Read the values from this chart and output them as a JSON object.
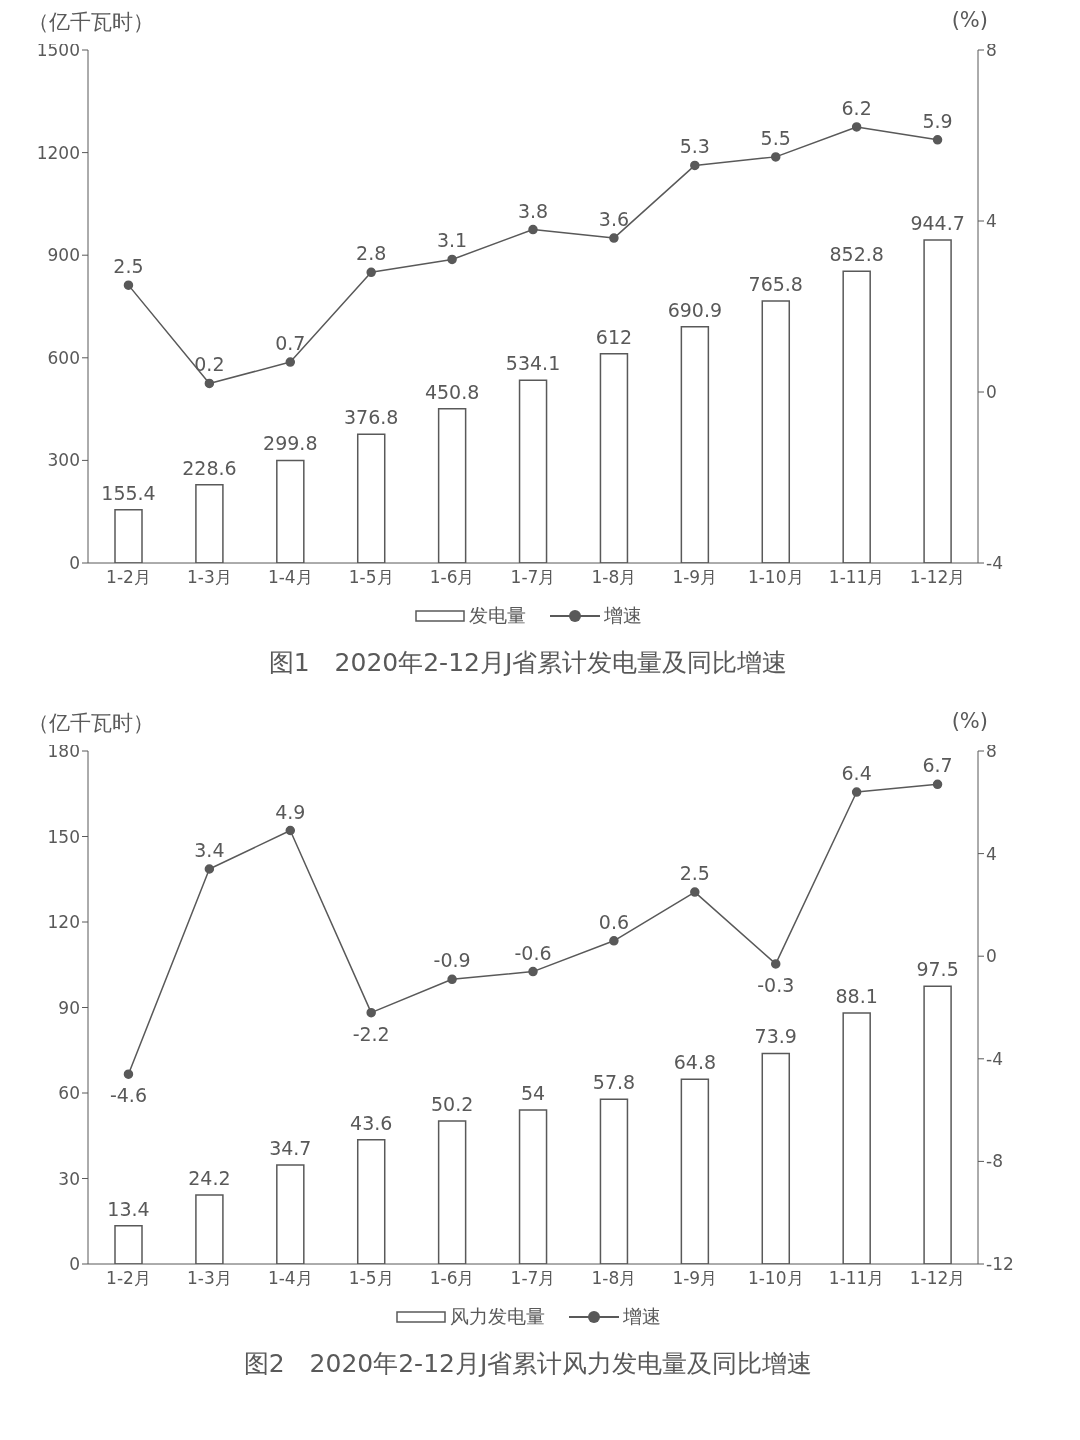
{
  "chart_data": [
    {
      "type": "bar",
      "title": "图1　2020年2-12月J省累计发电量及同比增速",
      "ylabel": "（亿千瓦时）",
      "y2label": "(%)",
      "categories": [
        "1-2月",
        "1-3月",
        "1-4月",
        "1-5月",
        "1-6月",
        "1-7月",
        "1-8月",
        "1-9月",
        "1-10月",
        "1-11月",
        "1-12月"
      ],
      "series": [
        {
          "name": "发电量",
          "color": "#ffffff",
          "values": [
            155.4,
            228.6,
            299.8,
            376.8,
            450.8,
            534.1,
            612,
            690.9,
            765.8,
            852.8,
            944.7
          ]
        },
        {
          "name": "增速",
          "type": "line",
          "axis": "y2",
          "color": "#595959",
          "values": [
            2.5,
            0.2,
            0.7,
            2.8,
            3.1,
            3.8,
            3.6,
            5.3,
            5.5,
            6.2,
            5.9
          ]
        }
      ],
      "ylim": [
        0,
        1500
      ],
      "yticks": [
        0,
        300,
        600,
        900,
        1200,
        1500
      ],
      "y2lim": [
        -4,
        8
      ],
      "y2ticks": [
        -4,
        0,
        4,
        8
      ],
      "grid": false,
      "legend": "bottom",
      "marker": "circle",
      "data_labels": true
    },
    {
      "type": "bar",
      "title": "图2　2020年2-12月J省累计风力发电量及同比增速",
      "ylabel": "（亿千瓦时）",
      "y2label": "(%)",
      "categories": [
        "1-2月",
        "1-3月",
        "1-4月",
        "1-5月",
        "1-6月",
        "1-7月",
        "1-8月",
        "1-9月",
        "1-10月",
        "1-11月",
        "1-12月"
      ],
      "series": [
        {
          "name": "风力发电量",
          "color": "#ffffff",
          "values": [
            13.4,
            24.2,
            34.7,
            43.6,
            50.2,
            54,
            57.8,
            64.8,
            73.9,
            88.1,
            97.5
          ]
        },
        {
          "name": "增速",
          "type": "line",
          "axis": "y2",
          "color": "#595959",
          "values": [
            -4.6,
            3.4,
            4.9,
            -2.2,
            -0.9,
            -0.6,
            0.6,
            2.5,
            -0.3,
            6.4,
            6.7
          ]
        }
      ],
      "ylim": [
        0,
        180
      ],
      "yticks": [
        0,
        30,
        60,
        90,
        120,
        150,
        180
      ],
      "y2lim": [
        -12,
        8
      ],
      "y2ticks": [
        -12,
        -8,
        -4,
        0,
        4,
        8
      ],
      "grid": false,
      "legend": "bottom",
      "marker": "circle",
      "data_labels": true
    }
  ]
}
